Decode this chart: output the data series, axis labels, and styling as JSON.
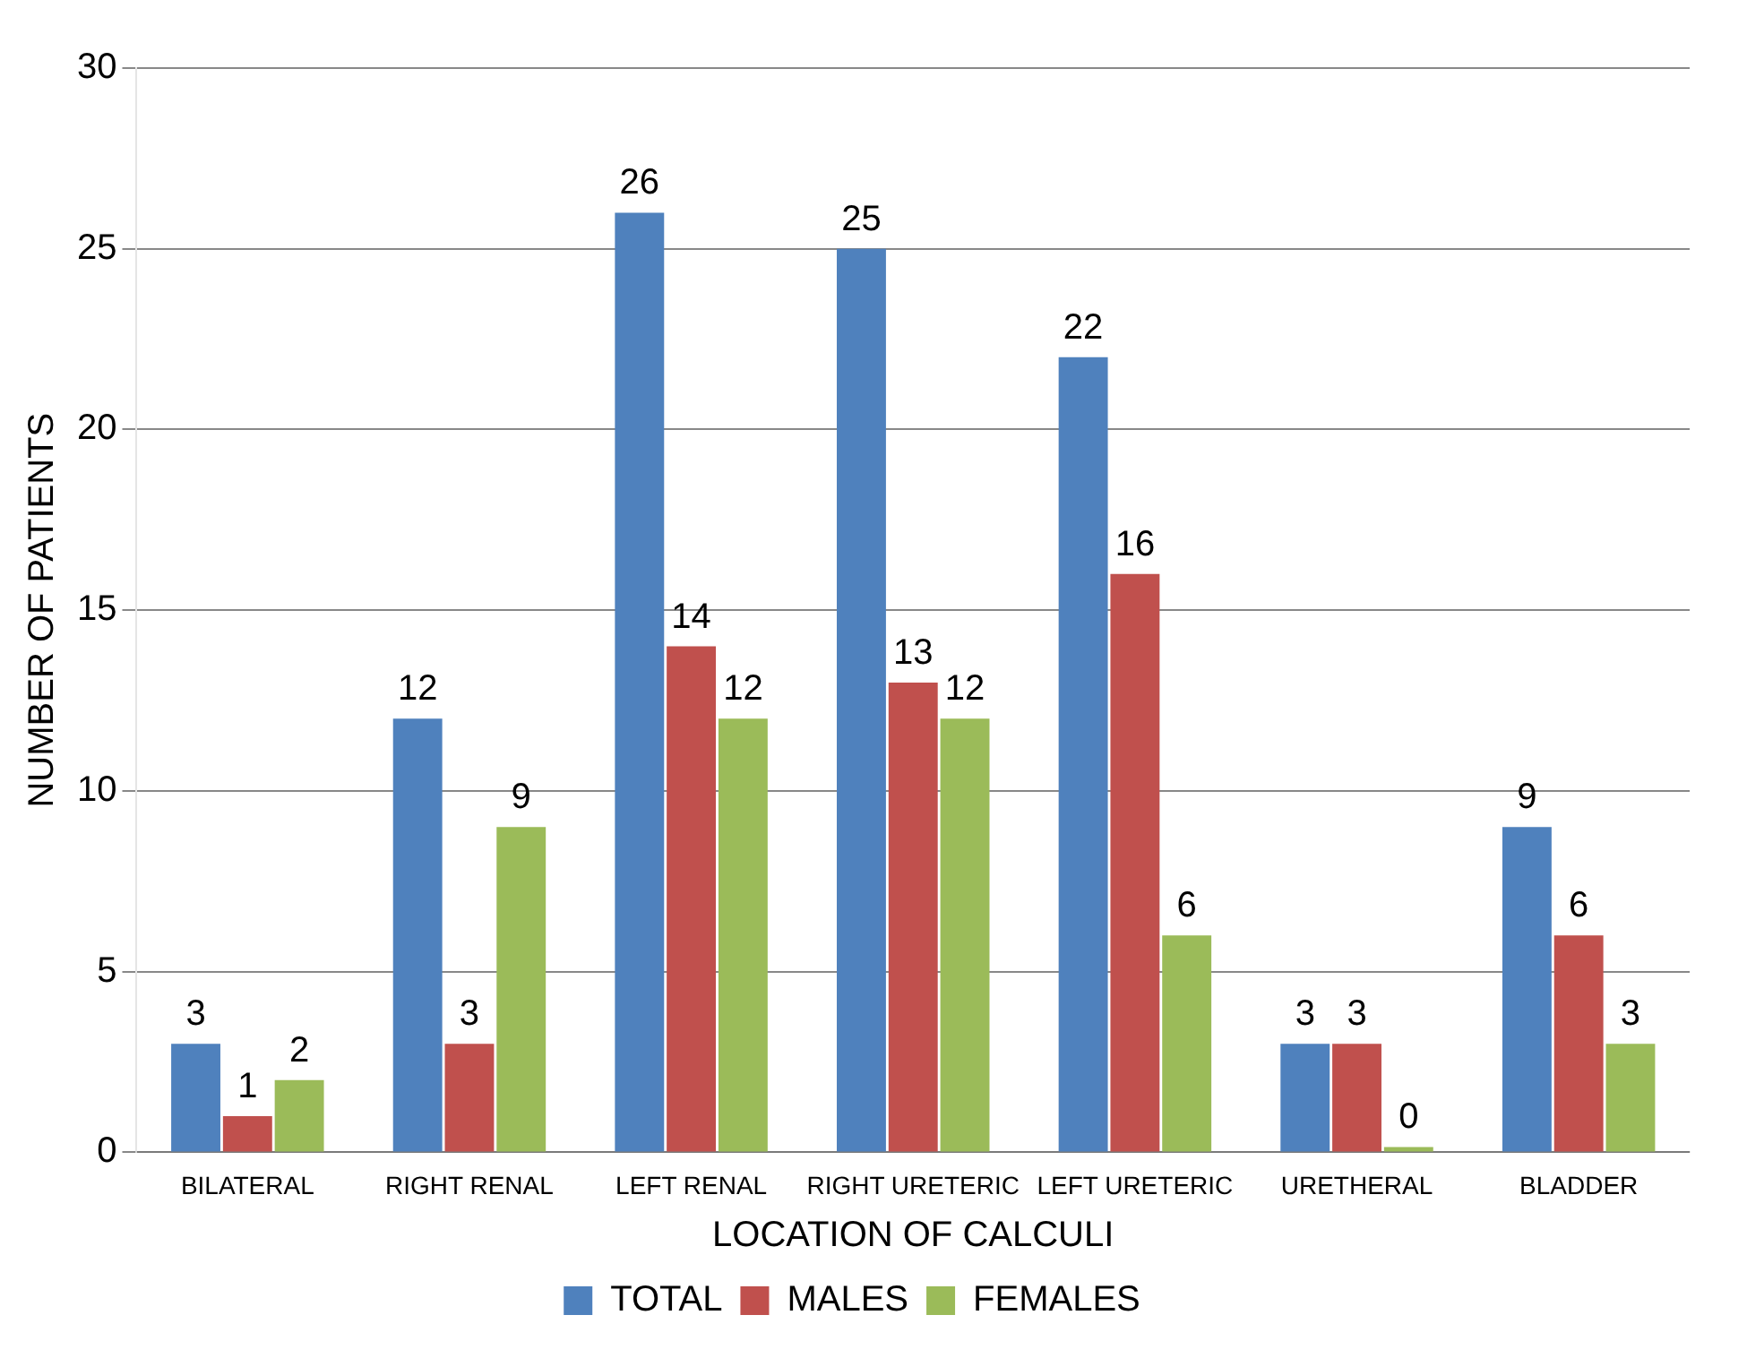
{
  "chart_data": {
    "type": "bar",
    "xlabel": "LOCATION OF CALCULI",
    "ylabel": "NUMBER OF PATIENTS",
    "categories": [
      "BILATERAL",
      "RIGHT RENAL",
      "LEFT RENAL",
      "RIGHT URETERIC",
      "LEFT URETERIC",
      "URETHERAL",
      "BLADDER"
    ],
    "series": [
      {
        "name": "TOTAL",
        "color": "#4f81bd",
        "values": [
          3,
          12,
          26,
          25,
          22,
          3,
          9
        ]
      },
      {
        "name": "MALES",
        "color": "#c0504d",
        "values": [
          1,
          3,
          14,
          13,
          16,
          3,
          6
        ]
      },
      {
        "name": "FEMALES",
        "color": "#9bbb59",
        "values": [
          2,
          9,
          12,
          12,
          6,
          0,
          3
        ]
      }
    ],
    "ylim": [
      0,
      30
    ],
    "yticks": [
      0,
      5,
      10,
      15,
      20,
      25,
      30
    ],
    "grid": "y",
    "legend": "bottom",
    "data_labels": true
  }
}
